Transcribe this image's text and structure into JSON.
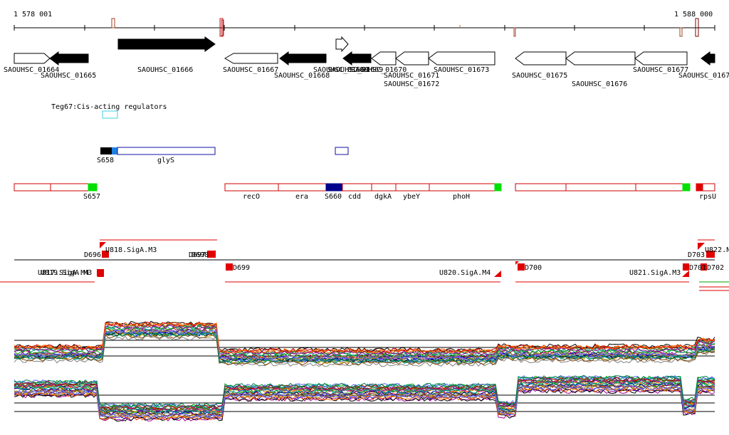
{
  "coords": {
    "start": "1 578 001",
    "end": "1 588 000"
  },
  "genes": [
    {
      "id": "SAOUHSC_01664",
      "label": "SAOUHSC_01664",
      "strand": "-",
      "filled": false
    },
    {
      "id": "SAOUHSC_01665",
      "label": "SAOUHSC_01665",
      "strand": "-",
      "filled": true
    },
    {
      "id": "SAOUHSC_01666",
      "label": "SAOUHSC_01666",
      "strand": "+",
      "filled": true
    },
    {
      "id": "SAOUHSC_01667",
      "label": "SAOUHSC_01667",
      "strand": "-",
      "filled": false
    },
    {
      "id": "SAOUHSC_01668",
      "label": "SAOUHSC_01668",
      "strand": "-",
      "filled": true
    },
    {
      "id": "SAOUHSC_01669",
      "label": "SAOUHSC_01669",
      "strand": "+",
      "filled": false
    },
    {
      "id": "SAOUHSC_01669b",
      "label": "SAOUHSC_01669",
      "strand": "-",
      "filled": true
    },
    {
      "id": "SAOUHSC_01670",
      "label": "SAOUHSC_01670",
      "strand": "-",
      "filled": false
    },
    {
      "id": "SAOUHSC_01671",
      "label": "SAOUHSC_01671",
      "strand": "-",
      "filled": false
    },
    {
      "id": "SAOUHSC_01672",
      "label": "SAOUHSC_01672",
      "strand": "-",
      "filled": false
    },
    {
      "id": "SAOUHSC_01673",
      "label": "SAOUHSC_01673",
      "strand": "-",
      "filled": false
    },
    {
      "id": "SAOUHSC_01675",
      "label": "SAOUHSC_01675",
      "strand": "-",
      "filled": false
    },
    {
      "id": "SAOUHSC_01676",
      "label": "SAOUHSC_01676",
      "strand": "-",
      "filled": false
    },
    {
      "id": "SAOUHSC_01677",
      "label": "SAOUHSC_01677",
      "strand": "-",
      "filled": false
    },
    {
      "id": "SAOUHSC_01678",
      "label": "SAOUHSC_0167",
      "strand": "-",
      "filled": true
    }
  ],
  "cis_regulators": {
    "title": "Teg67:Cis-acting regulators"
  },
  "track_glyS": {
    "s658": "S658",
    "glys": "glyS"
  },
  "operons": {
    "s657": "S657",
    "s660": "S660",
    "labels": [
      "recO",
      "era",
      "cdd",
      "dgkA",
      "ybeY",
      "phoH",
      "rpsU"
    ]
  },
  "promoters": {
    "u818": "U818.SigA.M3",
    "d696": "D696",
    "d697": "D697",
    "d698": "D698",
    "d699": "D699",
    "u817": "U817.SigA.M4",
    "u819": "U819.SigA.M3",
    "u820": "U820.SigA.M4",
    "d700": "D700",
    "u821": "U821.SigA.M3",
    "d701": "D701",
    "d702": "D702",
    "d703": "D703",
    "u822": "U822.N"
  },
  "colors": {
    "gene_filled": "#000000",
    "operon": "#d00000",
    "sigma": "#00e000",
    "s660": "#00008b",
    "cis": "#40d0e0",
    "glys": "#1010a0",
    "promoter": "#e00000"
  }
}
